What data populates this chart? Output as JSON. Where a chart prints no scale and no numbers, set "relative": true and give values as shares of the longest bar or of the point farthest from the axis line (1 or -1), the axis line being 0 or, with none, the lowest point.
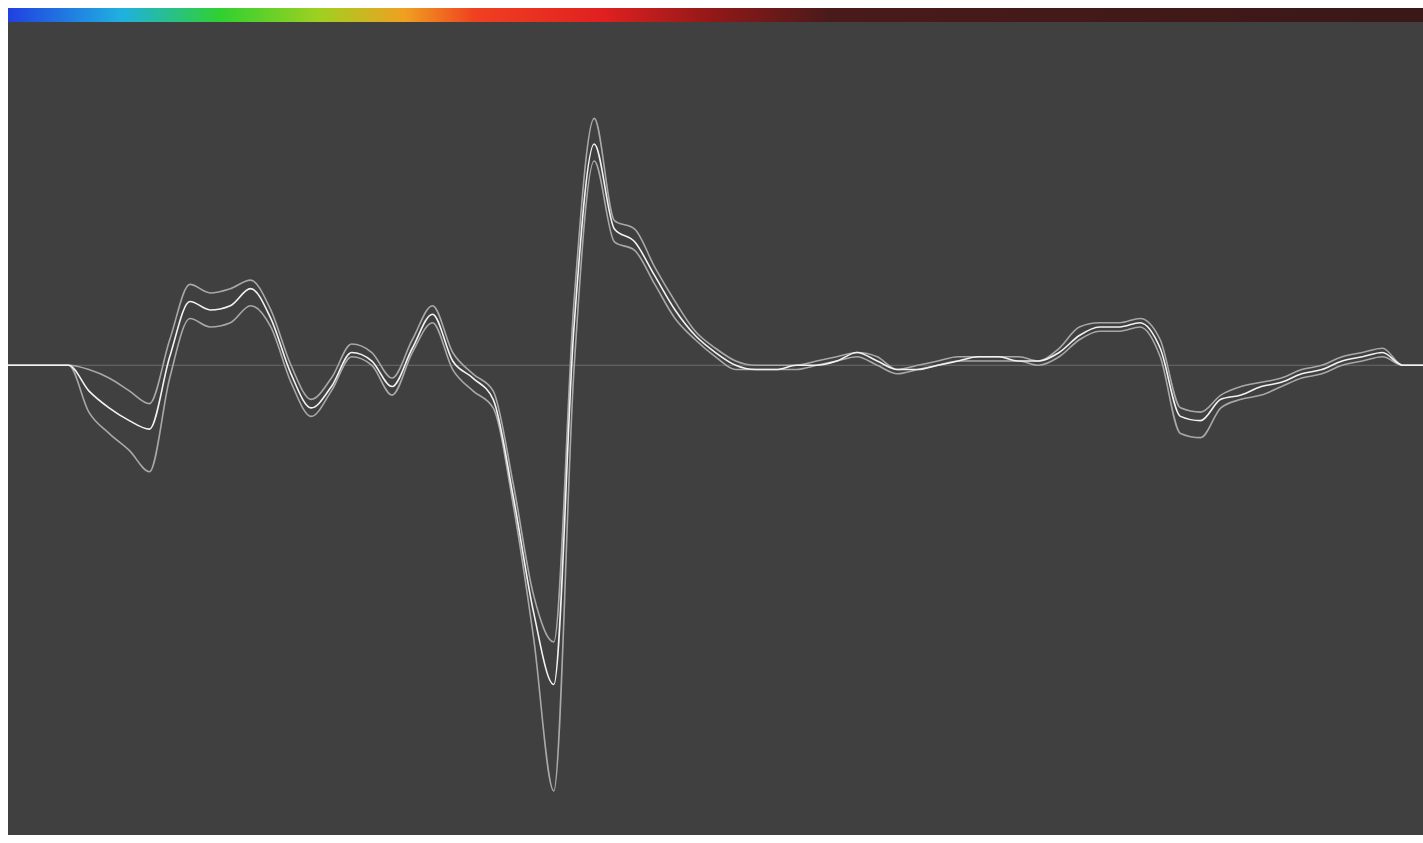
{
  "chart_data": {
    "type": "line",
    "relative": true,
    "tick_labels": false,
    "marker": "none",
    "line_style": "solid",
    "categories": [
      null,
      null,
      null,
      null,
      null,
      null,
      null,
      null,
      null,
      null,
      null,
      null,
      null,
      null,
      null,
      null,
      null,
      null,
      null,
      null,
      null,
      null,
      null,
      null,
      null,
      null,
      null,
      null,
      null,
      null,
      null,
      null,
      null,
      null,
      null,
      null,
      null,
      null,
      null,
      null,
      null,
      null,
      null,
      null,
      null,
      null,
      null,
      null,
      null,
      null,
      null,
      null,
      null,
      null,
      null,
      null,
      null,
      null,
      null,
      null,
      null,
      null,
      null,
      null,
      null,
      null,
      null,
      null,
      null,
      null,
      null
    ],
    "series": [
      {
        "color": "#a8a8a8",
        "values": [
          0,
          0,
          0,
          0,
          -0.11,
          -0.16,
          -0.2,
          -0.25,
          -0.03,
          0.11,
          0.09,
          0.1,
          0.14,
          0.09,
          -0.04,
          -0.12,
          -0.06,
          0.02,
          0.0,
          -0.07,
          0.03,
          0.1,
          -0.01,
          -0.06,
          -0.1,
          -0.33,
          -0.64,
          -1,
          -0.01,
          0.48,
          0.29,
          0.27,
          0.19,
          0.11,
          0.06,
          0.02,
          -0.01,
          -0.01,
          -0.01,
          -0.01,
          0.0,
          0.01,
          0.02,
          0.0,
          -0.02,
          -0.01,
          0.0,
          0.01,
          0.01,
          0.01,
          0.01,
          0.0,
          0.02,
          0.06,
          0.08,
          0.08,
          0.09,
          0.02,
          -0.16,
          -0.17,
          -0.1,
          -0.08,
          -0.07,
          -0.05,
          -0.03,
          -0.02,
          0.0,
          0.01,
          0.02,
          0,
          0
        ]
      },
      {
        "color": "#a8a8a8",
        "values": [
          0,
          0,
          0,
          0,
          -0.01,
          -0.03,
          -0.06,
          -0.09,
          0.06,
          0.19,
          0.17,
          0.18,
          0.2,
          0.13,
          0.0,
          -0.08,
          -0.03,
          0.05,
          0.03,
          -0.03,
          0.06,
          0.14,
          0.03,
          -0.02,
          -0.06,
          -0.28,
          -0.54,
          -0.65,
          0.15,
          0.58,
          0.34,
          0.32,
          0.23,
          0.15,
          0.08,
          0.04,
          0.01,
          0.0,
          0.0,
          0.0,
          0.01,
          0.02,
          0.03,
          0.02,
          -0.01,
          0.0,
          0.01,
          0.02,
          0.02,
          0.02,
          0.02,
          0.01,
          0.04,
          0.09,
          0.1,
          0.1,
          0.11,
          0.06,
          -0.1,
          -0.11,
          -0.07,
          -0.05,
          -0.04,
          -0.03,
          -0.01,
          0.0,
          0.02,
          0.03,
          0.04,
          0,
          0
        ]
      },
      {
        "color": "#f2f2f2",
        "values": [
          0,
          0,
          0,
          0,
          -0.06,
          -0.1,
          -0.13,
          -0.15,
          0.02,
          0.15,
          0.13,
          0.14,
          0.18,
          0.11,
          -0.02,
          -0.1,
          -0.05,
          0.03,
          0.01,
          -0.05,
          0.04,
          0.12,
          0.01,
          -0.03,
          -0.08,
          -0.31,
          -0.58,
          -0.75,
          0.09,
          0.52,
          0.32,
          0.29,
          0.21,
          0.13,
          0.07,
          0.03,
          0.0,
          -0.01,
          -0.01,
          0.0,
          0.0,
          0.01,
          0.03,
          0.01,
          -0.01,
          -0.01,
          0.0,
          0.01,
          0.02,
          0.02,
          0.01,
          0.01,
          0.03,
          0.07,
          0.09,
          0.09,
          0.1,
          0.04,
          -0.12,
          -0.13,
          -0.08,
          -0.07,
          -0.05,
          -0.04,
          -0.02,
          -0.01,
          0.01,
          0.02,
          0.03,
          0,
          0
        ]
      }
    ]
  }
}
